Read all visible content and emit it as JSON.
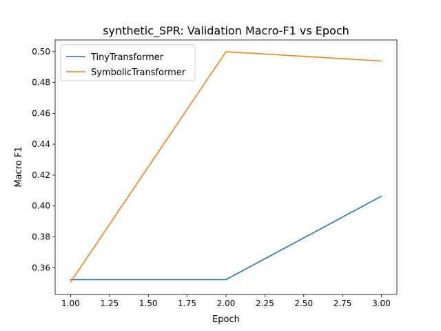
{
  "chart_data": {
    "type": "line",
    "title": "synthetic_SPR: Validation Macro-F1 vs Epoch",
    "xlabel": "Epoch",
    "ylabel": "Macro F1",
    "x": [
      1.0,
      2.0,
      3.0
    ],
    "xlim": [
      0.9,
      3.1
    ],
    "ylim": [
      0.3427,
      0.5075
    ],
    "x_ticks": [
      "1.00",
      "1.25",
      "1.50",
      "1.75",
      "2.00",
      "2.25",
      "2.50",
      "2.75",
      "3.00"
    ],
    "x_tick_values": [
      1.0,
      1.25,
      1.5,
      1.75,
      2.0,
      2.25,
      2.5,
      2.75,
      3.0
    ],
    "y_ticks": [
      "0.36",
      "0.38",
      "0.40",
      "0.42",
      "0.44",
      "0.46",
      "0.48",
      "0.50"
    ],
    "y_tick_values": [
      0.36,
      0.38,
      0.4,
      0.42,
      0.44,
      0.46,
      0.48,
      0.5
    ],
    "grid": false,
    "legend_position": "top-left",
    "series": [
      {
        "name": "TinyTransformer",
        "color": "#1f77b4",
        "values": [
          0.3523,
          0.3523,
          0.4063
        ]
      },
      {
        "name": "SymbolicTransformer",
        "color": "#ff7f0e",
        "values": [
          0.3508,
          0.4999,
          0.4939
        ]
      }
    ]
  }
}
